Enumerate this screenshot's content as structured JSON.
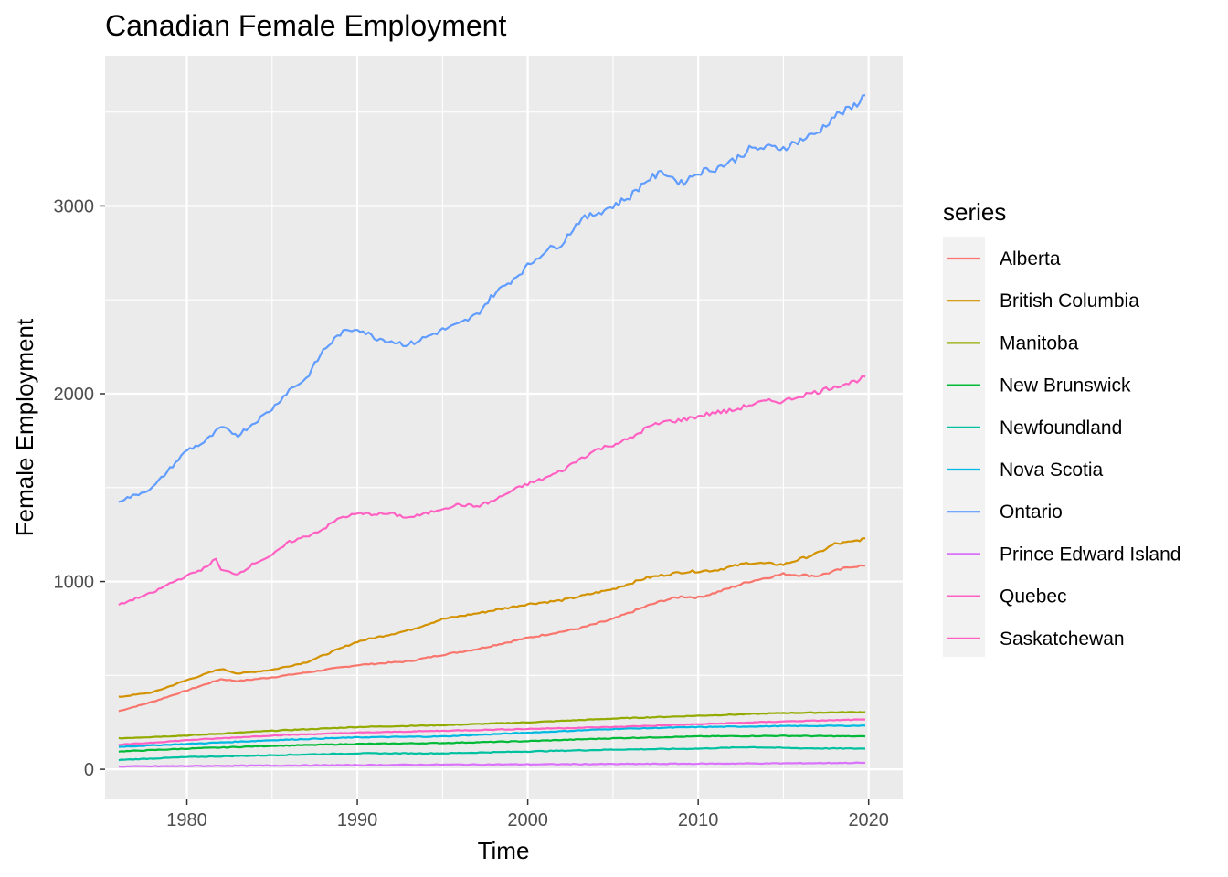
{
  "chart_data": {
    "type": "line",
    "title": "Canadian Female Employment",
    "xlabel": "Time",
    "ylabel": "Female Employment",
    "legend_title": "series",
    "legend_position": "right",
    "grid": true,
    "xlim": [
      1975.2,
      2022.0
    ],
    "ylim": [
      -160,
      3800
    ],
    "x_ticks": [
      1980,
      1990,
      2000,
      2010,
      2020
    ],
    "x_tick_labels": [
      "1980",
      "1990",
      "2000",
      "2010",
      "2020"
    ],
    "y_ticks": [
      0,
      1000,
      2000,
      3000
    ],
    "y_tick_labels": [
      "0",
      "1000",
      "2000",
      "3000"
    ],
    "series": [
      {
        "name": "Alberta",
        "color": "#F8766D",
        "points": [
          [
            1976,
            310
          ],
          [
            1978,
            360
          ],
          [
            1980,
            420
          ],
          [
            1982,
            480
          ],
          [
            1983,
            470
          ],
          [
            1985,
            490
          ],
          [
            1987,
            515
          ],
          [
            1990,
            555
          ],
          [
            1993,
            575
          ],
          [
            1995,
            610
          ],
          [
            1997,
            640
          ],
          [
            2000,
            700
          ],
          [
            2003,
            750
          ],
          [
            2005,
            800
          ],
          [
            2007,
            870
          ],
          [
            2008,
            900
          ],
          [
            2009,
            920
          ],
          [
            2010,
            915
          ],
          [
            2011,
            940
          ],
          [
            2013,
            1000
          ],
          [
            2015,
            1040
          ],
          [
            2017,
            1030
          ],
          [
            2019,
            1080
          ],
          [
            2019.8,
            1085
          ]
        ]
      },
      {
        "name": "British Columbia",
        "color": "#D39200",
        "points": [
          [
            1976,
            385
          ],
          [
            1978,
            410
          ],
          [
            1980,
            475
          ],
          [
            1982,
            535
          ],
          [
            1983,
            510
          ],
          [
            1985,
            530
          ],
          [
            1987,
            570
          ],
          [
            1990,
            680
          ],
          [
            1993,
            740
          ],
          [
            1995,
            800
          ],
          [
            1997,
            830
          ],
          [
            2000,
            880
          ],
          [
            2002,
            900
          ],
          [
            2005,
            960
          ],
          [
            2007,
            1020
          ],
          [
            2009,
            1050
          ],
          [
            2011,
            1060
          ],
          [
            2013,
            1100
          ],
          [
            2015,
            1090
          ],
          [
            2017,
            1150
          ],
          [
            2018,
            1200
          ],
          [
            2019,
            1210
          ],
          [
            2019.8,
            1230
          ]
        ]
      },
      {
        "name": "Manitoba",
        "color": "#93AA00",
        "points": [
          [
            1976,
            165
          ],
          [
            1980,
            180
          ],
          [
            1985,
            205
          ],
          [
            1990,
            225
          ],
          [
            1995,
            235
          ],
          [
            2000,
            250
          ],
          [
            2005,
            270
          ],
          [
            2010,
            285
          ],
          [
            2015,
            300
          ],
          [
            2019.8,
            305
          ]
        ]
      },
      {
        "name": "New Brunswick",
        "color": "#00BA38",
        "points": [
          [
            1976,
            95
          ],
          [
            1980,
            110
          ],
          [
            1985,
            125
          ],
          [
            1990,
            135
          ],
          [
            1995,
            140
          ],
          [
            2000,
            150
          ],
          [
            2005,
            165
          ],
          [
            2010,
            175
          ],
          [
            2015,
            178
          ],
          [
            2019.8,
            175
          ]
        ]
      },
      {
        "name": "Newfoundland",
        "color": "#00C19F",
        "points": [
          [
            1976,
            50
          ],
          [
            1980,
            65
          ],
          [
            1985,
            75
          ],
          [
            1990,
            85
          ],
          [
            1995,
            85
          ],
          [
            2000,
            95
          ],
          [
            2005,
            105
          ],
          [
            2010,
            110
          ],
          [
            2013,
            118
          ],
          [
            2016,
            112
          ],
          [
            2019.8,
            110
          ]
        ]
      },
      {
        "name": "Nova Scotia",
        "color": "#00B9E3",
        "points": [
          [
            1976,
            120
          ],
          [
            1980,
            135
          ],
          [
            1985,
            155
          ],
          [
            1990,
            170
          ],
          [
            1995,
            175
          ],
          [
            2000,
            195
          ],
          [
            2005,
            215
          ],
          [
            2010,
            225
          ],
          [
            2015,
            230
          ],
          [
            2019.8,
            232
          ]
        ]
      },
      {
        "name": "Ontario",
        "color": "#619CFF",
        "points": [
          [
            1976,
            1430
          ],
          [
            1977,
            1460
          ],
          [
            1978,
            1500
          ],
          [
            1979,
            1600
          ],
          [
            1980,
            1700
          ],
          [
            1981,
            1740
          ],
          [
            1982,
            1820
          ],
          [
            1983,
            1780
          ],
          [
            1984,
            1850
          ],
          [
            1985,
            1920
          ],
          [
            1986,
            2020
          ],
          [
            1987,
            2080
          ],
          [
            1988,
            2230
          ],
          [
            1989,
            2320
          ],
          [
            1990,
            2350
          ],
          [
            1991,
            2300
          ],
          [
            1992,
            2280
          ],
          [
            1993,
            2260
          ],
          [
            1994,
            2300
          ],
          [
            1995,
            2340
          ],
          [
            1996,
            2370
          ],
          [
            1997,
            2420
          ],
          [
            1998,
            2530
          ],
          [
            1999,
            2600
          ],
          [
            2000,
            2680
          ],
          [
            2001,
            2760
          ],
          [
            2002,
            2800
          ],
          [
            2003,
            2920
          ],
          [
            2004,
            2960
          ],
          [
            2005,
            3000
          ],
          [
            2006,
            3050
          ],
          [
            2007,
            3140
          ],
          [
            2008,
            3180
          ],
          [
            2009,
            3120
          ],
          [
            2010,
            3180
          ],
          [
            2011,
            3200
          ],
          [
            2012,
            3240
          ],
          [
            2013,
            3300
          ],
          [
            2014,
            3310
          ],
          [
            2015,
            3310
          ],
          [
            2016,
            3350
          ],
          [
            2017,
            3390
          ],
          [
            2018,
            3480
          ],
          [
            2019,
            3520
          ],
          [
            2019.8,
            3590
          ]
        ]
      },
      {
        "name": "Prince Edward Island",
        "color": "#DB72FB",
        "points": [
          [
            1976,
            15
          ],
          [
            1985,
            20
          ],
          [
            1995,
            25
          ],
          [
            2005,
            28
          ],
          [
            2015,
            32
          ],
          [
            2019.8,
            35
          ]
        ]
      },
      {
        "name": "Quebec",
        "color": "#FF61C3",
        "points": [
          [
            1976,
            875
          ],
          [
            1977,
            910
          ],
          [
            1978,
            940
          ],
          [
            1979,
            990
          ],
          [
            1980,
            1030
          ],
          [
            1981,
            1070
          ],
          [
            1981.7,
            1120
          ],
          [
            1982,
            1060
          ],
          [
            1983,
            1040
          ],
          [
            1984,
            1100
          ],
          [
            1985,
            1140
          ],
          [
            1986,
            1210
          ],
          [
            1987,
            1240
          ],
          [
            1988,
            1280
          ],
          [
            1989,
            1340
          ],
          [
            1990,
            1360
          ],
          [
            1991,
            1360
          ],
          [
            1992,
            1360
          ],
          [
            1993,
            1340
          ],
          [
            1994,
            1360
          ],
          [
            1995,
            1390
          ],
          [
            1996,
            1410
          ],
          [
            1997,
            1400
          ],
          [
            1998,
            1430
          ],
          [
            1999,
            1480
          ],
          [
            2000,
            1520
          ],
          [
            2001,
            1550
          ],
          [
            2002,
            1590
          ],
          [
            2003,
            1650
          ],
          [
            2004,
            1700
          ],
          [
            2005,
            1730
          ],
          [
            2006,
            1760
          ],
          [
            2007,
            1820
          ],
          [
            2008,
            1850
          ],
          [
            2009,
            1860
          ],
          [
            2010,
            1880
          ],
          [
            2011,
            1900
          ],
          [
            2012,
            1910
          ],
          [
            2013,
            1940
          ],
          [
            2014,
            1960
          ],
          [
            2015,
            1960
          ],
          [
            2016,
            1990
          ],
          [
            2017,
            2010
          ],
          [
            2018,
            2040
          ],
          [
            2019,
            2060
          ],
          [
            2019.8,
            2090
          ]
        ]
      },
      {
        "name": "Saskatchewan",
        "color": "#FF61C3",
        "points": [
          [
            1976,
            130
          ],
          [
            1980,
            155
          ],
          [
            1985,
            180
          ],
          [
            1990,
            195
          ],
          [
            1995,
            205
          ],
          [
            2000,
            215
          ],
          [
            2005,
            225
          ],
          [
            2010,
            240
          ],
          [
            2015,
            255
          ],
          [
            2019.8,
            265
          ]
        ]
      }
    ]
  }
}
